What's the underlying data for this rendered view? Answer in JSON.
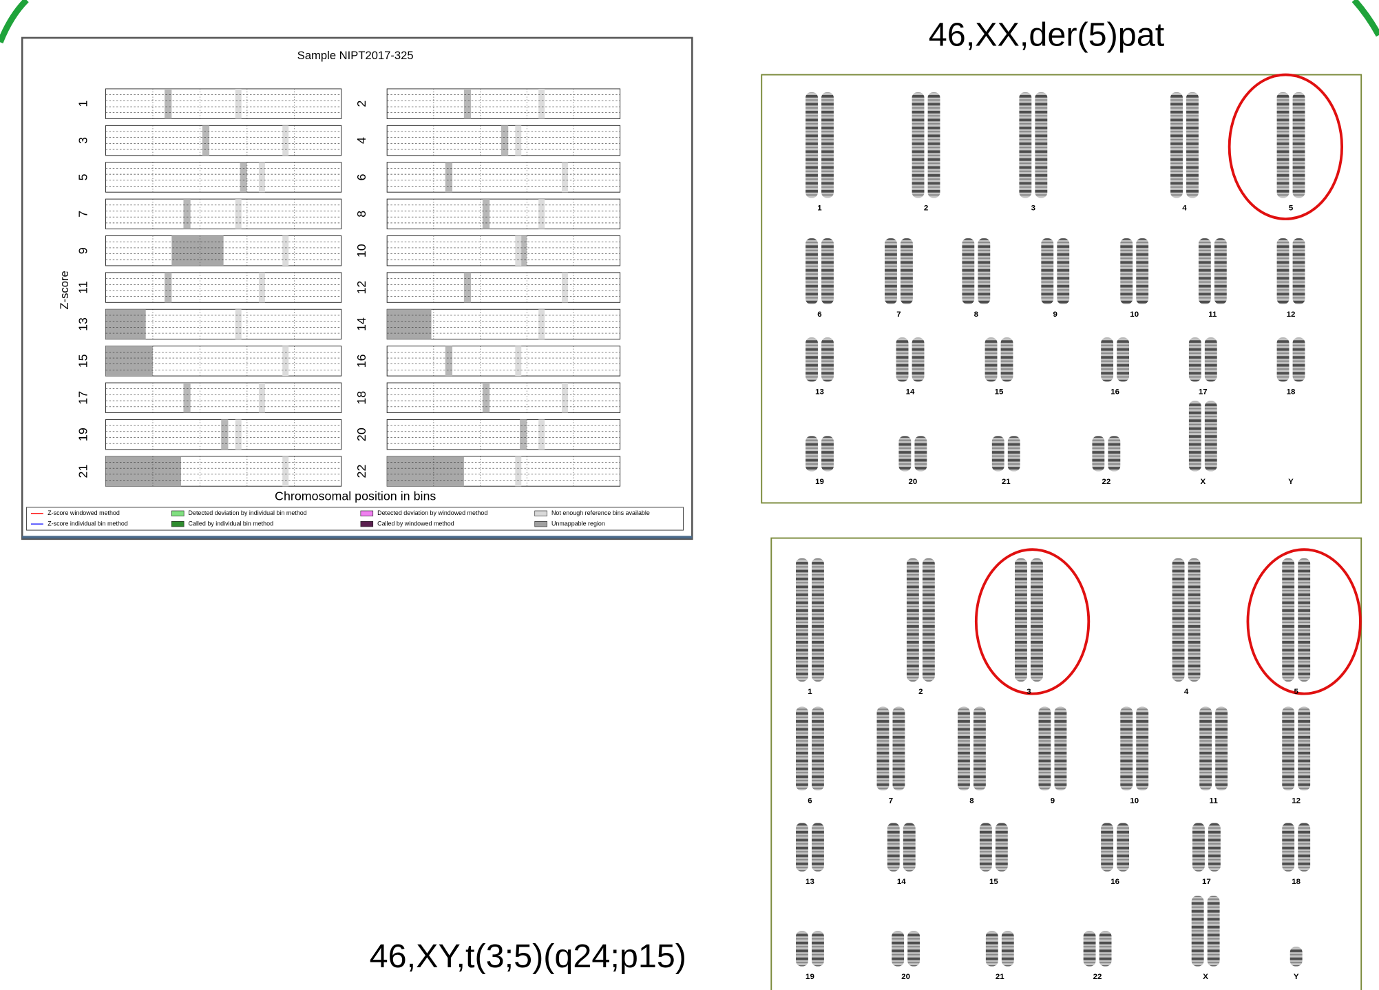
{
  "nipt_plot": {
    "title": "Sample NIPT2017-325",
    "y_label": "Z-score",
    "x_label": "Chromosomal position in bins",
    "chromosomes": [
      "1",
      "2",
      "3",
      "4",
      "5",
      "6",
      "7",
      "8",
      "9",
      "10",
      "11",
      "12",
      "13",
      "14",
      "15",
      "16",
      "17",
      "18",
      "19",
      "20",
      "21",
      "22"
    ],
    "legend": [
      {
        "label": "Z-score windowed method",
        "color": "#ff0000",
        "kind": "line"
      },
      {
        "label": "Z-score individual bin method",
        "color": "#0000ff",
        "kind": "line"
      },
      {
        "label": "Detected deviation by individual bin method",
        "color": "#80e080",
        "kind": "box"
      },
      {
        "label": "Called by individual bin method",
        "color": "#2e8b2e",
        "kind": "box"
      },
      {
        "label": "Detected deviation by windowed method",
        "color": "#f080f0",
        "kind": "box"
      },
      {
        "label": "Called by windowed method",
        "color": "#5a1f4f",
        "kind": "box"
      },
      {
        "label": "Not enough reference bins available",
        "color": "#d9d9d9",
        "kind": "box"
      },
      {
        "label": "Unmappable region",
        "color": "#a0a0a0",
        "kind": "box"
      }
    ]
  },
  "karyotype_1": {
    "title": "46,XX,der(5)pat",
    "labels": [
      "1",
      "2",
      "3",
      "4",
      "5",
      "6",
      "7",
      "8",
      "9",
      "10",
      "11",
      "12",
      "13",
      "14",
      "15",
      "16",
      "17",
      "18",
      "19",
      "20",
      "21",
      "22",
      "X",
      "Y"
    ]
  },
  "karyotype_2": {
    "title": "46,XY,t(3;5)(q24;p15)",
    "labels": [
      "1",
      "2",
      "3",
      "4",
      "5",
      "6",
      "7",
      "8",
      "9",
      "10",
      "11",
      "12",
      "13",
      "14",
      "15",
      "16",
      "17",
      "18",
      "19",
      "20",
      "21",
      "22",
      "X",
      "Y"
    ]
  }
}
